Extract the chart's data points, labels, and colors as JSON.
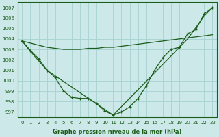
{
  "xlabel": "Graphe pression niveau de la mer (hPa)",
  "background_color": "#cce8e8",
  "grid_color": "#aad4d4",
  "line_color": "#1a5c1a",
  "xlim": [
    -0.5,
    23.5
  ],
  "ylim": [
    996.5,
    1007.5
  ],
  "yticks": [
    997,
    998,
    999,
    1000,
    1001,
    1002,
    1003,
    1004,
    1005,
    1006,
    1007
  ],
  "xticks": [
    0,
    1,
    2,
    3,
    4,
    5,
    6,
    7,
    8,
    9,
    10,
    11,
    12,
    13,
    14,
    15,
    16,
    17,
    18,
    19,
    20,
    21,
    22,
    23
  ],
  "series": [
    {
      "x": [
        0,
        1,
        2,
        3,
        4,
        5,
        6,
        7,
        8,
        9,
        10,
        11,
        12,
        13,
        14,
        15,
        16,
        17,
        18,
        19,
        20,
        21,
        22,
        23
      ],
      "y": [
        1003.8,
        1002.9,
        1002.1,
        1001.0,
        1000.3,
        999.0,
        998.4,
        998.3,
        998.3,
        997.8,
        997.1,
        996.7,
        997.0,
        997.5,
        998.3,
        999.5,
        1001.0,
        1002.2,
        1003.0,
        1003.2,
        1004.5,
        1004.9,
        1006.4,
        1007.0
      ]
    },
    {
      "x": [
        0,
        1,
        3,
        11,
        20,
        22,
        23
      ],
      "y": [
        1003.8,
        1002.8,
        1001.0,
        996.7,
        1004.0,
        1006.2,
        1007.0
      ]
    },
    {
      "x": [
        0,
        1,
        2,
        3,
        4,
        5,
        6,
        7,
        8,
        9,
        10,
        11,
        12,
        13,
        14,
        15,
        16,
        17,
        18,
        19,
        20,
        21,
        22,
        23
      ],
      "y": [
        1003.8,
        1003.6,
        1003.4,
        1003.2,
        1003.1,
        1003.0,
        1003.0,
        1003.0,
        1003.1,
        1003.1,
        1003.2,
        1003.2,
        1003.3,
        1003.4,
        1003.5,
        1003.6,
        1003.7,
        1003.8,
        1003.9,
        1004.0,
        1004.1,
        1004.2,
        1004.3,
        1004.4
      ]
    }
  ]
}
